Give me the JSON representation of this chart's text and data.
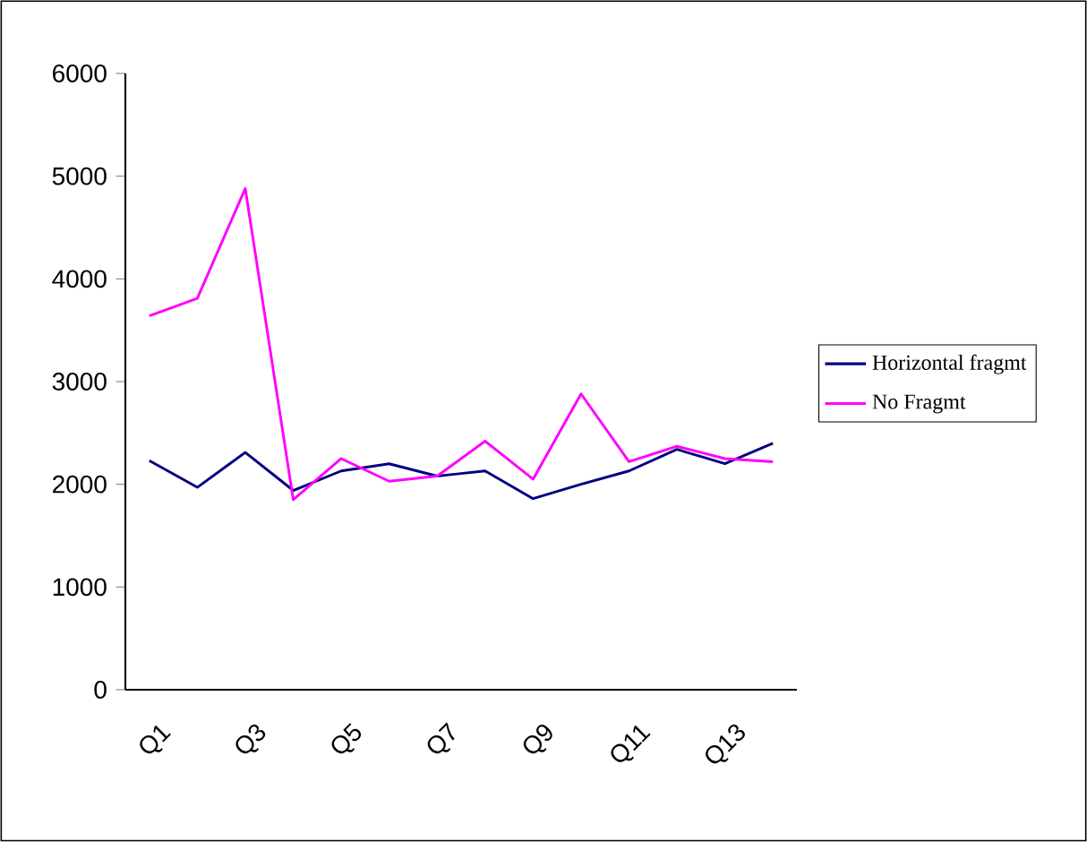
{
  "chart_data": {
    "type": "line",
    "categories": [
      "Q1",
      null,
      "Q3",
      null,
      "Q5",
      null,
      "Q7",
      null,
      "Q9",
      null,
      "Q11",
      null,
      "Q13",
      null
    ],
    "series": [
      {
        "name": "Horizontal fragmt",
        "color": "#000080",
        "values": [
          2230,
          1970,
          2310,
          1940,
          2130,
          2200,
          2080,
          2130,
          1860,
          2000,
          2130,
          2340,
          2200,
          2400
        ]
      },
      {
        "name": "No Fragmt",
        "color": "#ff00ff",
        "values": [
          3640,
          3810,
          4880,
          1850,
          2250,
          2030,
          2080,
          2420,
          2050,
          2880,
          2220,
          2370,
          2250,
          2220
        ]
      }
    ],
    "ylim": [
      0,
      6000
    ],
    "yticks": [
      0,
      1000,
      2000,
      3000,
      4000,
      5000,
      6000
    ],
    "grid": false,
    "legend": "right",
    "marker": "none",
    "line_style": "solid"
  }
}
